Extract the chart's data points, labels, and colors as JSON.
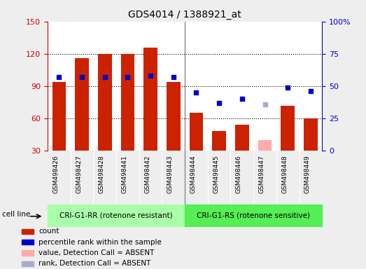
{
  "title": "GDS4014 / 1388921_at",
  "samples": [
    "GSM498426",
    "GSM498427",
    "GSM498428",
    "GSM498441",
    "GSM498442",
    "GSM498443",
    "GSM498444",
    "GSM498445",
    "GSM498446",
    "GSM498447",
    "GSM498448",
    "GSM498449"
  ],
  "groups": [
    "CRI-G1-RR (rotenone resistant)",
    "CRI-G1-RS (rotenone sensitive)"
  ],
  "group_sizes": [
    6,
    6
  ],
  "bar_values": [
    94,
    116,
    120,
    120,
    126,
    94,
    65,
    48,
    54,
    0,
    72,
    60
  ],
  "bar_absent": [
    false,
    false,
    false,
    false,
    false,
    false,
    false,
    false,
    false,
    true,
    false,
    false
  ],
  "absent_bar_values": [
    0,
    0,
    0,
    0,
    0,
    0,
    0,
    0,
    0,
    40,
    0,
    0
  ],
  "dot_values_pct": [
    57,
    57,
    57,
    57,
    58,
    57,
    45,
    37,
    40,
    0,
    49,
    46
  ],
  "dot_absent": [
    false,
    false,
    false,
    false,
    false,
    false,
    false,
    false,
    false,
    true,
    false,
    false
  ],
  "absent_dot_values_pct": [
    0,
    0,
    0,
    0,
    0,
    0,
    0,
    0,
    0,
    36,
    0,
    0
  ],
  "bar_color": "#cc2200",
  "bar_absent_color": "#ffaaaa",
  "dot_color": "#0000cc",
  "dot_absent_color": "#aaaacc",
  "group1_color": "#aaffaa",
  "group2_color": "#55ee55",
  "cell_line_label": "cell line",
  "ylim_left": [
    30,
    150
  ],
  "ylim_right": [
    0,
    100
  ],
  "yticks_left": [
    30,
    60,
    90,
    120,
    150
  ],
  "yticks_right": [
    0,
    25,
    50,
    75,
    100
  ],
  "ylabel_left_color": "#cc0000",
  "ylabel_right_color": "#0000cc",
  "background_color": "#eeeeee",
  "plot_bg": "#ffffff",
  "legend_items": [
    "count",
    "percentile rank within the sample",
    "value, Detection Call = ABSENT",
    "rank, Detection Call = ABSENT"
  ],
  "legend_colors": [
    "#cc2200",
    "#0000cc",
    "#ffaaaa",
    "#aaaacc"
  ],
  "xticklabel_bg": "#cccccc"
}
